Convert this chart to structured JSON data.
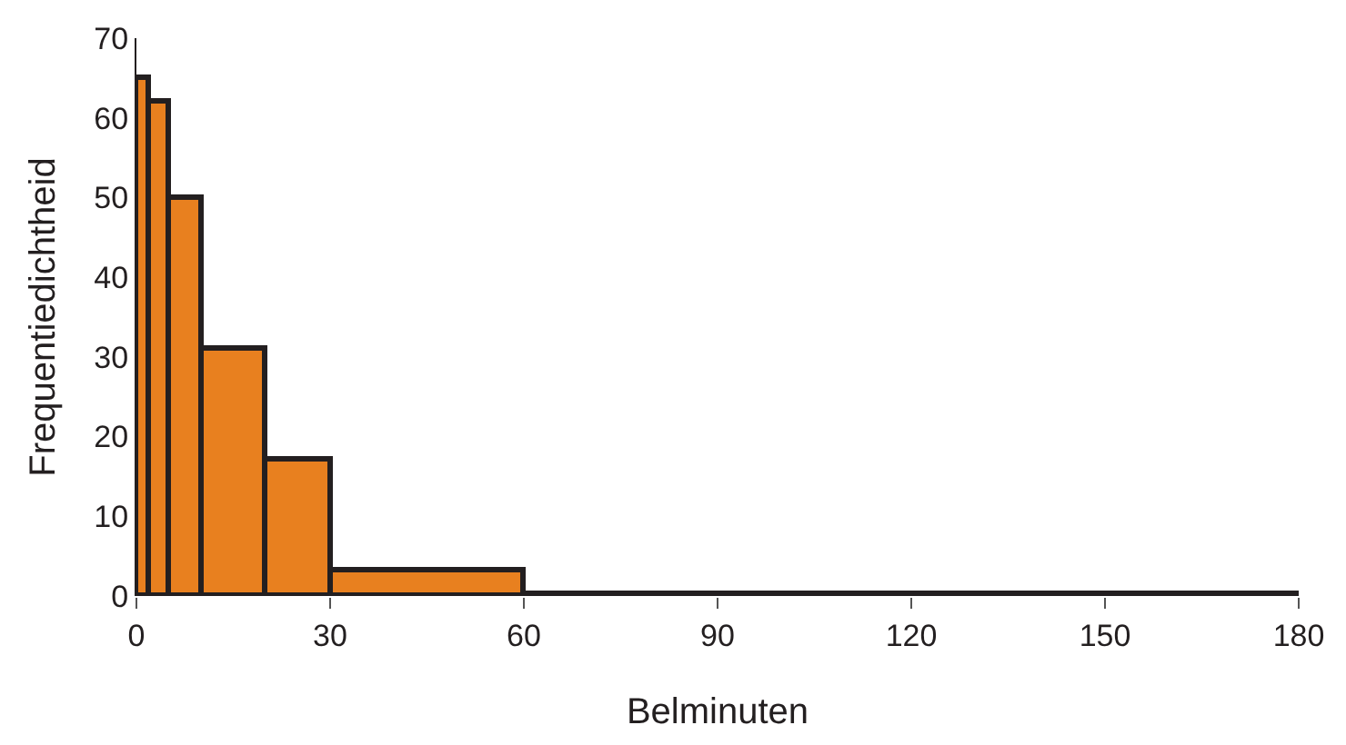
{
  "chart_data": {
    "type": "histogram",
    "xlabel": "Belminuten",
    "ylabel": "Frequentiedichtheid",
    "bins": [
      0,
      2,
      5,
      10,
      20,
      30,
      60,
      180
    ],
    "values": [
      65,
      62,
      50,
      31,
      17,
      3.2,
      0.3
    ],
    "color": "#e8801f",
    "xlim": [
      0,
      180
    ],
    "xticks": [
      0,
      30,
      60,
      90,
      120,
      150,
      180
    ],
    "ylim": [
      0,
      70
    ],
    "yticks": [
      0,
      10,
      20,
      30,
      40,
      50,
      60,
      70
    ],
    "grid": false
  }
}
